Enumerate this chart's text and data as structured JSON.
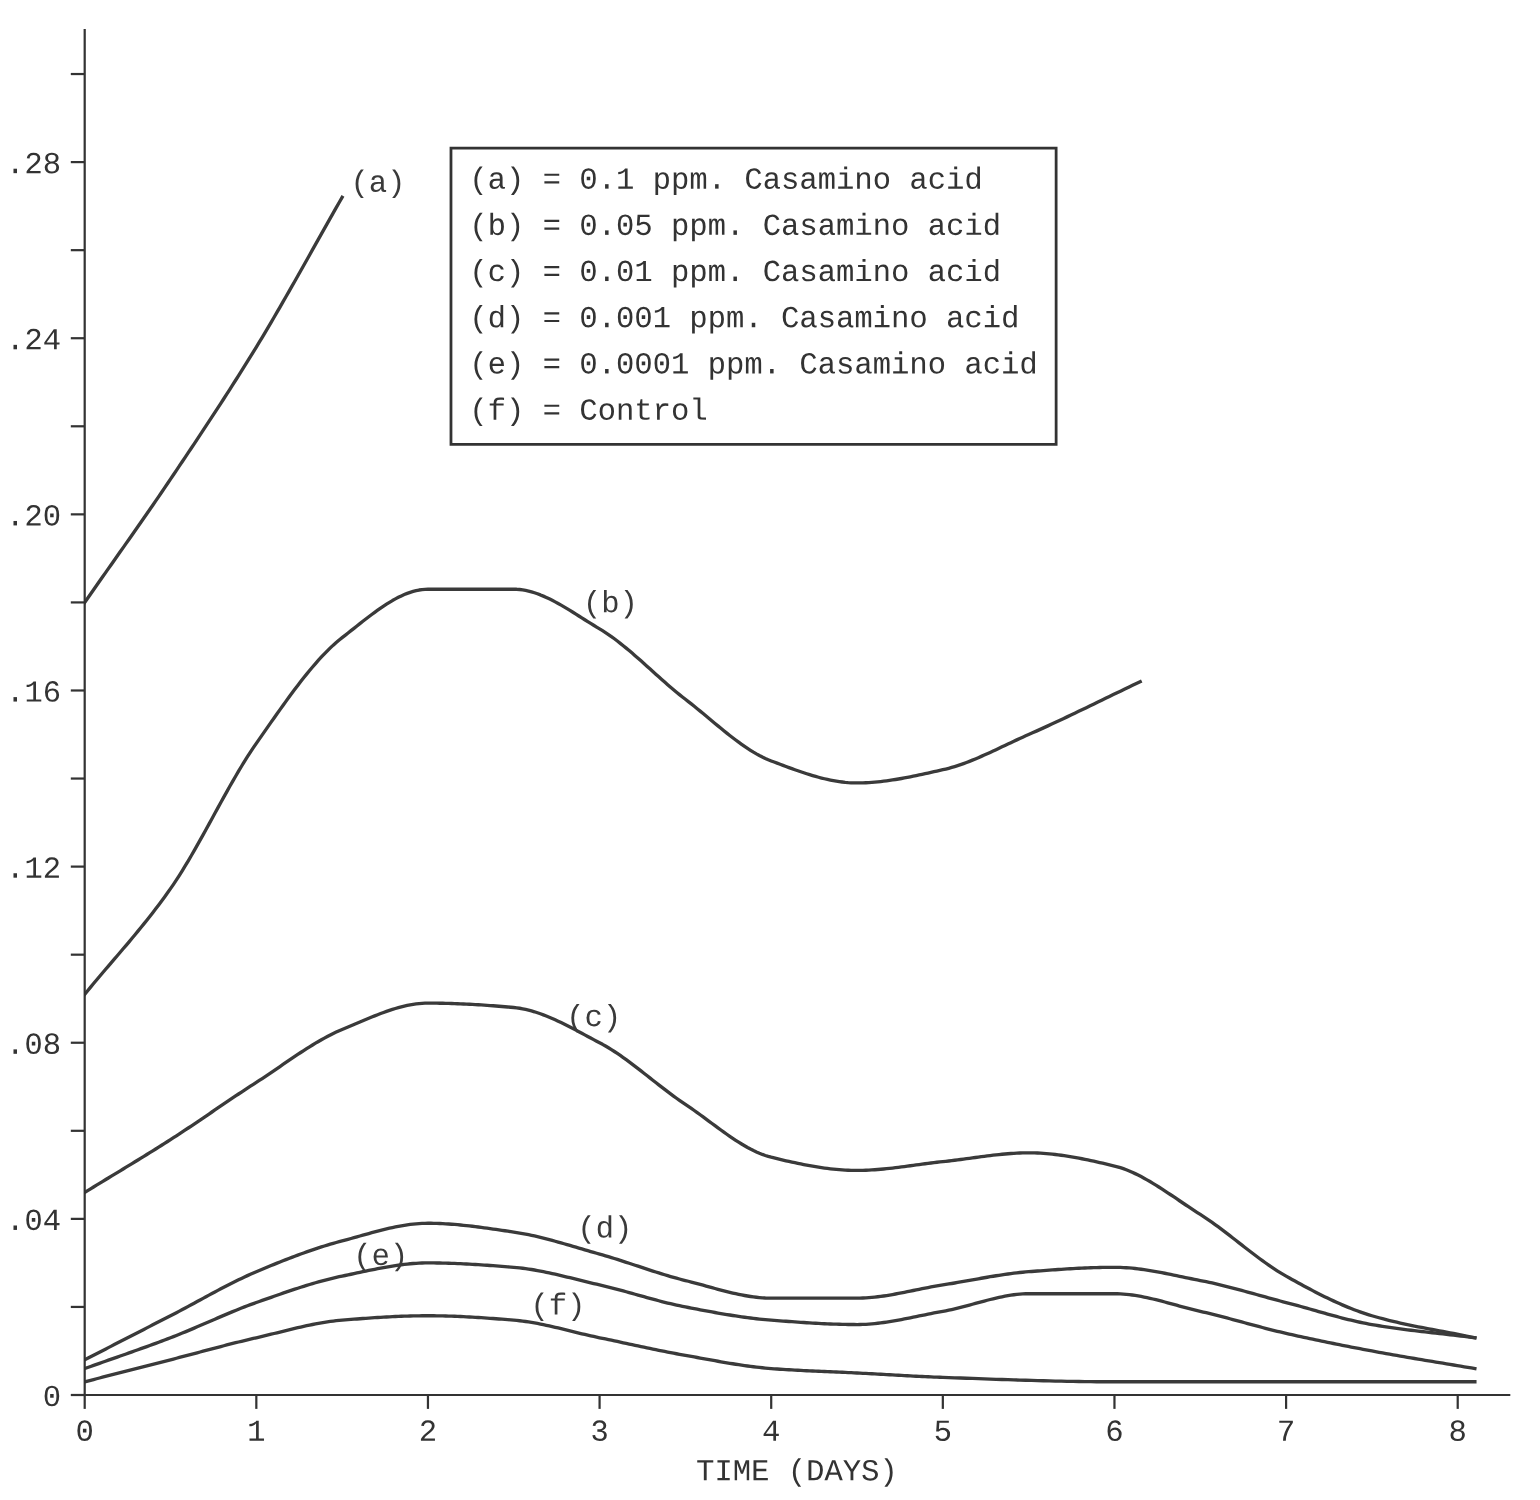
{
  "chart_data": {
    "type": "line",
    "xlabel": "TIME (DAYS)",
    "xlim": [
      0,
      8.3
    ],
    "ylim": [
      0,
      0.31
    ],
    "xticks": [
      0,
      1,
      2,
      3,
      4,
      5,
      6,
      7,
      8
    ],
    "yticks": [
      {
        "value": 0,
        "label": "0"
      },
      {
        "value": 0.02,
        "label": null
      },
      {
        "value": 0.04,
        "label": ".04"
      },
      {
        "value": 0.06,
        "label": null
      },
      {
        "value": 0.08,
        "label": ".08"
      },
      {
        "value": 0.1,
        "label": null
      },
      {
        "value": 0.12,
        "label": ".12"
      },
      {
        "value": 0.14,
        "label": null
      },
      {
        "value": 0.16,
        "label": ".16"
      },
      {
        "value": 0.18,
        "label": null
      },
      {
        "value": 0.2,
        "label": ".20"
      },
      {
        "value": 0.22,
        "label": null
      },
      {
        "value": 0.24,
        "label": ".24"
      },
      {
        "value": 0.26,
        "label": null
      },
      {
        "value": 0.28,
        "label": ".28"
      },
      {
        "value": 0.3,
        "label": null
      }
    ],
    "grid": false,
    "legend": false,
    "marker": "none",
    "line_style": "solid",
    "series": [
      {
        "name": "(a)",
        "color": "#3a3a3a",
        "x": [
          0,
          0.5,
          1,
          1.5
        ],
        "values": [
          0.18,
          0.208,
          0.238,
          0.272
        ]
      },
      {
        "name": "(b)",
        "color": "#3a3a3a",
        "x": [
          0,
          0.5,
          1,
          1.5,
          2,
          2.5,
          3,
          3.5,
          4,
          4.5,
          5,
          5.5,
          6.15
        ],
        "values": [
          0.091,
          0.115,
          0.148,
          0.172,
          0.183,
          0.183,
          0.174,
          0.158,
          0.144,
          0.139,
          0.142,
          0.15,
          0.162
        ]
      },
      {
        "name": "(c)",
        "color": "#3a3a3a",
        "x": [
          0,
          0.5,
          1,
          1.5,
          2,
          2.5,
          3,
          3.5,
          4,
          4.5,
          5,
          5.5,
          6,
          6.5,
          7,
          7.5,
          8.1
        ],
        "values": [
          0.046,
          0.058,
          0.071,
          0.083,
          0.089,
          0.088,
          0.08,
          0.066,
          0.054,
          0.051,
          0.053,
          0.055,
          0.052,
          0.041,
          0.027,
          0.018,
          0.013
        ]
      },
      {
        "name": "(d)",
        "color": "#3a3a3a",
        "x": [
          0,
          0.5,
          1,
          1.5,
          2,
          2.5,
          3,
          3.5,
          4,
          4.5,
          5,
          5.5,
          6,
          6.5,
          7,
          7.5,
          8.1
        ],
        "values": [
          0.008,
          0.018,
          0.028,
          0.035,
          0.039,
          0.037,
          0.032,
          0.026,
          0.022,
          0.022,
          0.025,
          0.028,
          0.029,
          0.026,
          0.021,
          0.016,
          0.013
        ]
      },
      {
        "name": "(e)",
        "color": "#3a3a3a",
        "x": [
          0,
          0.5,
          1,
          1.5,
          2,
          2.5,
          3,
          3.5,
          4,
          4.5,
          5,
          5.5,
          6,
          6.5,
          7,
          7.5,
          8.1
        ],
        "values": [
          0.006,
          0.013,
          0.021,
          0.027,
          0.03,
          0.029,
          0.025,
          0.02,
          0.017,
          0.016,
          0.019,
          0.023,
          0.023,
          0.019,
          0.014,
          0.01,
          0.006
        ]
      },
      {
        "name": "(f)",
        "color": "#3a3a3a",
        "x": [
          0,
          0.5,
          1,
          1.5,
          2,
          2.5,
          3,
          3.5,
          4,
          4.5,
          5,
          6,
          7,
          8.1
        ],
        "values": [
          0.003,
          0.008,
          0.013,
          0.017,
          0.018,
          0.017,
          0.013,
          0.009,
          0.006,
          0.005,
          0.004,
          0.003,
          0.003,
          0.003
        ]
      }
    ],
    "annotations": [
      "(a) = 0.1 ppm. Casamino acid\n(b) = 0.05 ppm. Casamino acid\n(c) = 0.01 ppm. Casamino acid\n(d) = 0.001 ppm. Casamino acid\n(e) = 0.0001 ppm. Casamino acid\n(f) = Control"
    ]
  }
}
